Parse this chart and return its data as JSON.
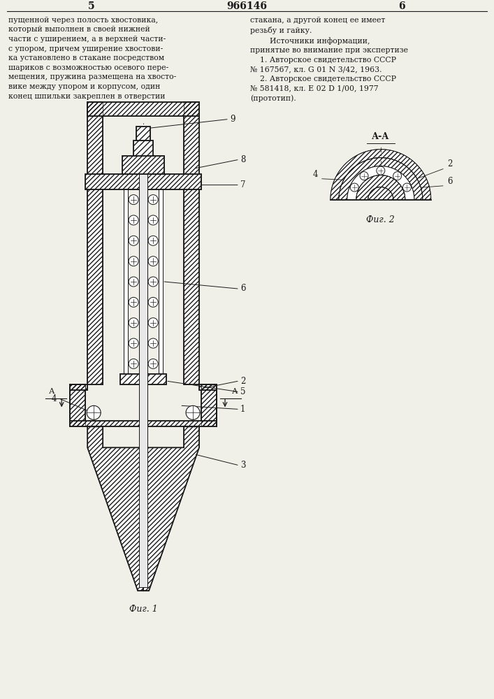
{
  "page_number_left": "5",
  "page_number_center": "966146",
  "page_number_right": "6",
  "text_left": "пущенной через полость хвостовика,\nкоторый выполнен в своей нижней\nчасти с уширением, а в верхней части-\nс упором, причем уширение хвостови-\nка установлено в стакане посредством\nшариков с возможностью осевого пере-\nмещения, пружина размещена на хвосто-\nвике между упором и корпусом, один\nконец шпильки закреплен в отверстии",
  "text_right": "стакана, а другой конец ее имеет\nрезьбу и гайку.\n        Источники информации,\nпринятые во внимание при экспертизе\n    1. Авторское свидетельство СССР\n№ 167567, кл. G 01 N 3/42, 1963.\n    2. Авторское свидетельство СССР\n№ 581418, кл. Е 02 D 1/00, 1977\n(прототип).",
  "fig1_caption": "Фиг. 1",
  "fig2_caption": "Фиг. 2",
  "fig2_label": "А-А",
  "background_color": "#f0efe8",
  "line_color": "#1a1a1a"
}
